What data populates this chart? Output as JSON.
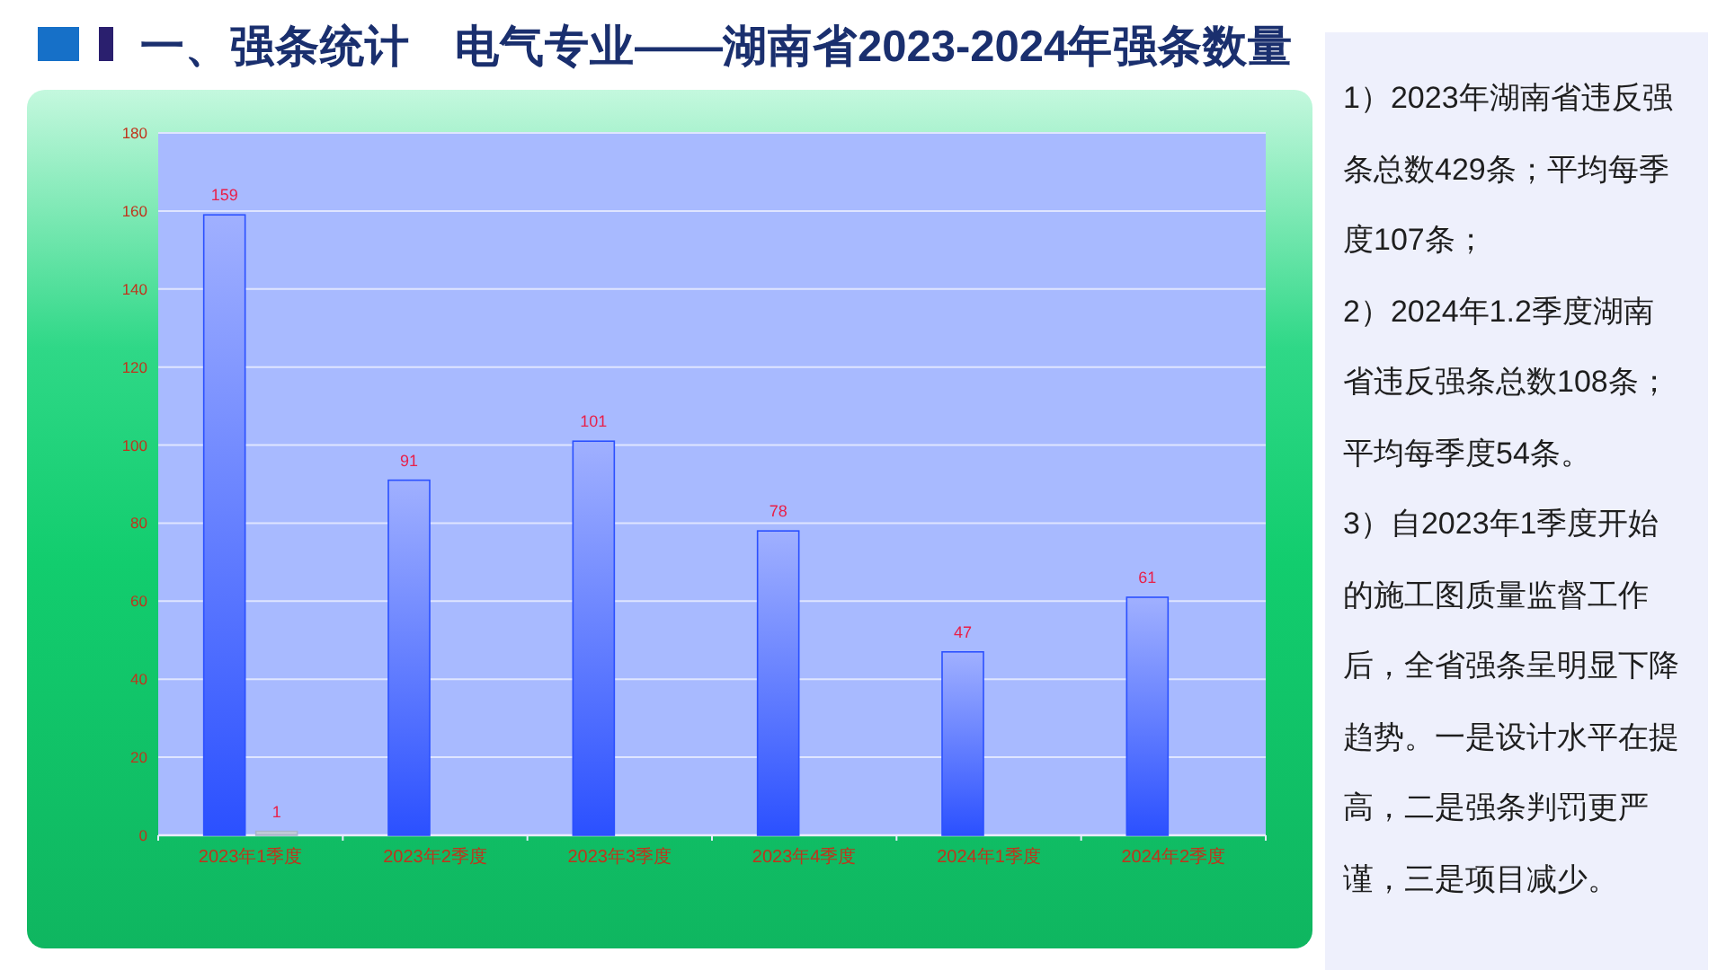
{
  "chart_data": [
    {
      "type": "bar",
      "title": "一、强条统计　电气专业——湖南省2023-2024年强条数量",
      "categories": [
        "2023年1季度",
        "2023年2季度",
        "2023年3季度",
        "2023年4季度",
        "2024年1季度",
        "2024年2季度"
      ],
      "series": [
        {
          "color": "#2b50ff",
          "values": [
            159,
            91,
            101,
            78,
            47,
            61
          ]
        },
        {
          "color": "#a8b4c8",
          "values": [
            1,
            null,
            null,
            null,
            null,
            null
          ]
        }
      ],
      "ylim": [
        0,
        180
      ],
      "yticks": [
        0,
        20,
        40,
        60,
        80,
        100,
        120,
        140,
        160,
        180
      ],
      "grid": "y",
      "data_labels": true
    },
    {
      "type": "other",
      "annotations": [
        "1）2023年湖南省违反强条总数429条；平均每季度107条；",
        "2）2024年1.2季度湖南省违反强条总数108条；平均每季度54条。",
        "3）自2023年1季度开始的施工图质量监督工作后，全省强条呈明显下降趋势。一是设计水平在提高，二是强条判罚更严谨，三是项目减少。"
      ]
    }
  ]
}
